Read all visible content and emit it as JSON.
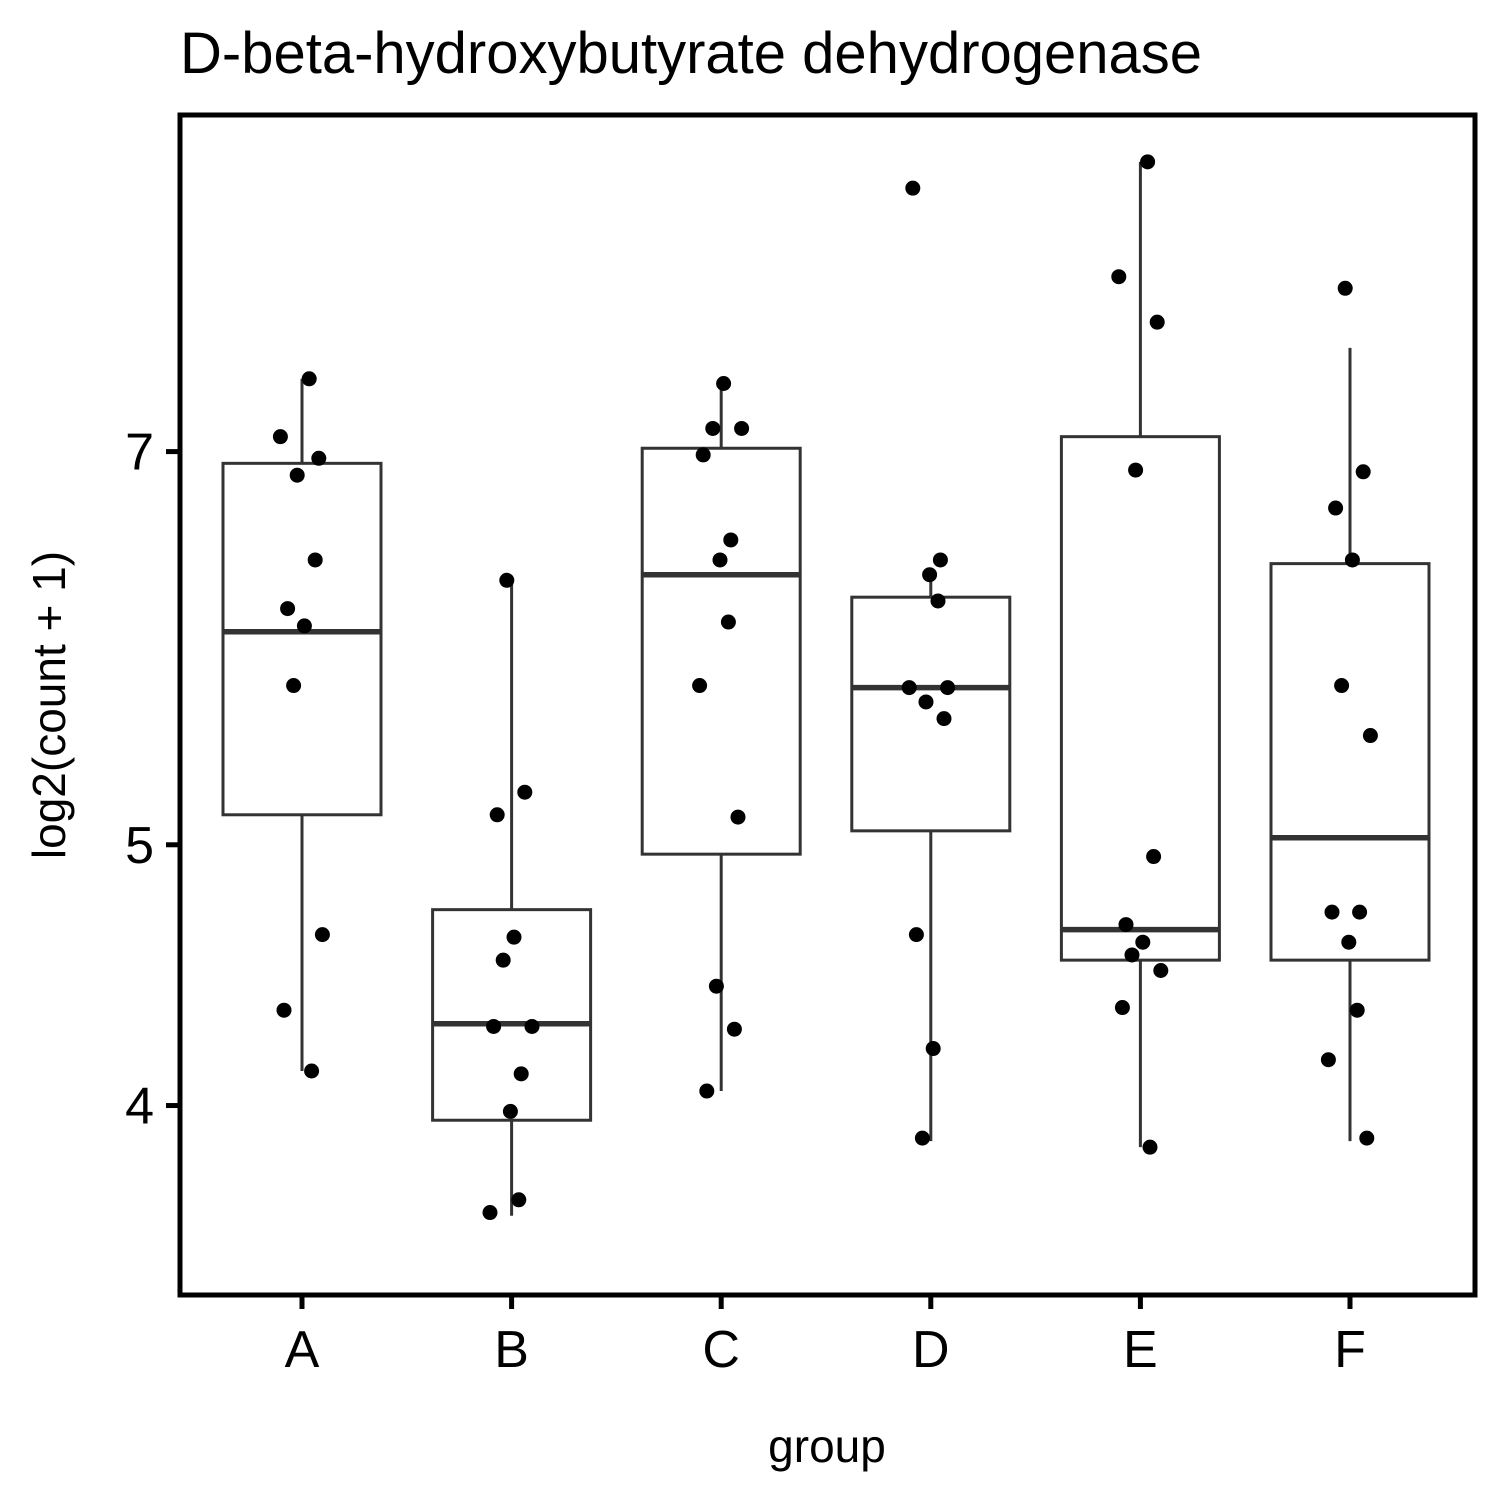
{
  "chart_data": {
    "type": "boxplot",
    "title": "D-beta-hydroxybutyrate dehydrogenase",
    "xlabel": "group",
    "ylabel": "log2(count + 1)",
    "y_scale": "log2",
    "y_ticks": [
      4,
      5,
      7
    ],
    "ylim": [
      3.55,
      9.1
    ],
    "categories": [
      "A",
      "B",
      "C",
      "D",
      "E",
      "F"
    ],
    "boxes": [
      {
        "group": "A",
        "q1": 5.13,
        "median": 6.0,
        "q3": 6.93,
        "whisker_low": 4.12,
        "whisker_high": 7.45
      },
      {
        "group": "B",
        "q1": 3.95,
        "median": 4.29,
        "q3": 4.73,
        "whisker_low": 3.64,
        "whisker_high": 6.27
      },
      {
        "group": "C",
        "q1": 4.96,
        "median": 6.3,
        "q3": 7.02,
        "whisker_low": 4.05,
        "whisker_high": 7.42
      },
      {
        "group": "D",
        "q1": 5.06,
        "median": 5.72,
        "q3": 6.18,
        "whisker_low": 3.88,
        "whisker_high": 6.3
      },
      {
        "group": "E",
        "q1": 4.53,
        "median": 4.65,
        "q3": 7.09,
        "whisker_low": 3.86,
        "whisker_high": 8.97
      },
      {
        "group": "F",
        "q1": 4.53,
        "median": 5.03,
        "q3": 6.36,
        "whisker_low": 3.88,
        "whisker_high": 7.65
      }
    ],
    "points": [
      {
        "group": "A",
        "values": [
          7.45,
          7.09,
          6.96,
          6.86,
          6.38,
          6.12,
          6.03,
          5.73,
          4.63,
          4.34,
          4.12
        ]
      },
      {
        "group": "B",
        "values": [
          6.27,
          5.23,
          5.13,
          4.62,
          4.53,
          4.28,
          4.28,
          4.11,
          3.98,
          3.69,
          3.65
        ]
      },
      {
        "group": "C",
        "values": [
          7.42,
          7.14,
          7.14,
          6.98,
          6.49,
          6.38,
          6.05,
          5.73,
          5.12,
          4.43,
          4.27,
          4.05
        ]
      },
      {
        "group": "D",
        "values": [
          8.77,
          6.38,
          6.3,
          6.16,
          5.72,
          5.72,
          5.65,
          5.57,
          4.63,
          4.2,
          3.89
        ]
      },
      {
        "group": "E",
        "values": [
          8.97,
          8.13,
          7.82,
          6.89,
          4.95,
          4.67,
          4.6,
          4.55,
          4.49,
          4.35,
          3.86
        ]
      },
      {
        "group": "F",
        "values": [
          8.05,
          6.88,
          6.67,
          6.38,
          5.73,
          5.49,
          4.72,
          4.72,
          4.6,
          4.34,
          4.16,
          3.89
        ]
      }
    ],
    "grid": false,
    "legend": "none",
    "colors": {
      "point": "#000000",
      "box_stroke": "#333333",
      "panel_border": "#000000",
      "background": "#ffffff"
    }
  }
}
